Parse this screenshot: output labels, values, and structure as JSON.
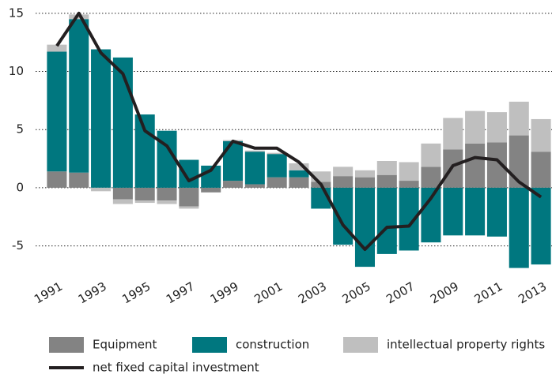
{
  "chart_data": {
    "type": "bar",
    "stacked": true,
    "categories": [
      "1991",
      null,
      "1993",
      null,
      "1995",
      null,
      "1997",
      null,
      "1999",
      null,
      "2001",
      null,
      "2003",
      null,
      "2005",
      null,
      "2007",
      null,
      "2009",
      null,
      "2011",
      null,
      "2013"
    ],
    "series": [
      {
        "name": "Equipment",
        "color": "#838383",
        "values": [
          1.4,
          1.3,
          0,
          -1.0,
          -1.1,
          -1.1,
          -1.6,
          -0.4,
          0.6,
          0.3,
          0.9,
          0.9,
          0.5,
          1.0,
          0.9,
          1.1,
          0.6,
          1.8,
          3.3,
          3.8,
          3.9,
          4.5,
          3.1
        ]
      },
      {
        "name": "construction",
        "color": "#00777f",
        "values": [
          10.3,
          13.2,
          11.9,
          11.2,
          6.3,
          4.9,
          2.4,
          1.9,
          3.4,
          2.8,
          2.0,
          0.6,
          -1.8,
          -4.9,
          -6.8,
          -5.7,
          -5.4,
          -4.7,
          -4.1,
          -4.1,
          -4.2,
          -6.9,
          -6.6
        ]
      },
      {
        "name": "intellectual property rights",
        "color": "#bfbfbf",
        "values": [
          0.6,
          0.4,
          -0.3,
          -0.4,
          -0.2,
          -0.3,
          -0.2,
          0,
          0.1,
          0.1,
          0.1,
          0.6,
          0.9,
          0.8,
          0.6,
          1.2,
          1.6,
          2.0,
          2.7,
          2.8,
          2.6,
          2.9,
          2.8
        ]
      },
      {
        "name": "net fixed capital investment",
        "type": "line",
        "color": "#231f20",
        "values": [
          12.2,
          15.0,
          11.6,
          9.8,
          4.9,
          3.6,
          0.6,
          1.5,
          4.0,
          3.4,
          3.4,
          2.2,
          0.3,
          -3.2,
          -5.3,
          -3.4,
          -3.3,
          -0.9,
          1.9,
          2.6,
          2.4,
          0.5,
          -0.8
        ]
      }
    ],
    "ylim": [
      -7.2,
      15.6
    ],
    "yticks": [
      {
        "value": -5,
        "label": "-5"
      },
      0,
      5,
      10,
      15
    ],
    "grid": true
  }
}
